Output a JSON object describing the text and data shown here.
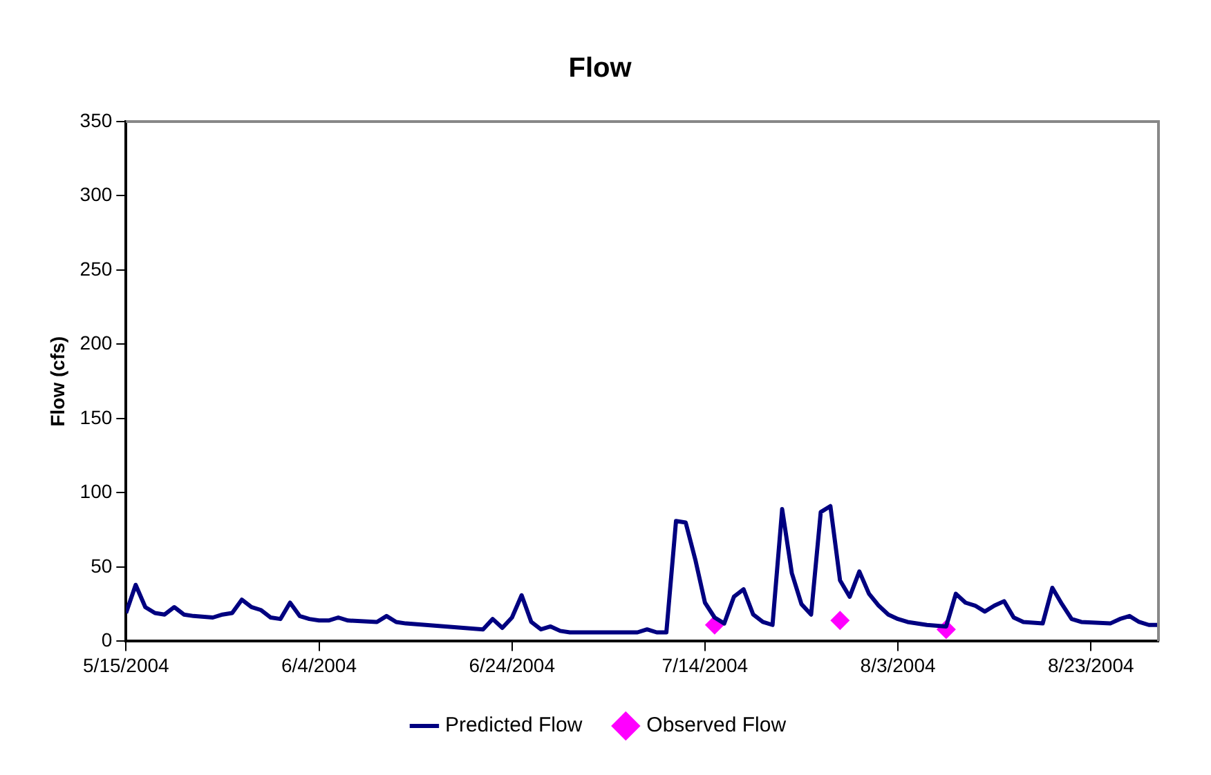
{
  "chart_data": {
    "type": "line",
    "title": "Flow",
    "ylabel": "Flow (cfs)",
    "xlim": [
      "2004-05-15",
      "2004-08-30"
    ],
    "xticks": [
      {
        "value": "2004-05-15",
        "label": "5/15/2004"
      },
      {
        "value": "2004-06-04",
        "label": "6/4/2004"
      },
      {
        "value": "2004-06-24",
        "label": "6/24/2004"
      },
      {
        "value": "2004-07-14",
        "label": "7/14/2004"
      },
      {
        "value": "2004-08-03",
        "label": "8/3/2004"
      },
      {
        "value": "2004-08-23",
        "label": "8/23/2004"
      }
    ],
    "ylim": [
      0,
      350
    ],
    "yticks": [
      0,
      50,
      100,
      150,
      200,
      250,
      300,
      350
    ],
    "grid": false,
    "legend": "bottom",
    "series": [
      {
        "name": "Predicted Flow",
        "color": "#000080",
        "marker": "none",
        "x": [
          "2004-05-15",
          "2004-05-16",
          "2004-05-17",
          "2004-05-18",
          "2004-05-19",
          "2004-05-20",
          "2004-05-21",
          "2004-05-22",
          "2004-05-24",
          "2004-05-25",
          "2004-05-26",
          "2004-05-27",
          "2004-05-28",
          "2004-05-29",
          "2004-05-30",
          "2004-05-31",
          "2004-06-01",
          "2004-06-02",
          "2004-06-03",
          "2004-06-04",
          "2004-06-05",
          "2004-06-06",
          "2004-06-07",
          "2004-06-10",
          "2004-06-11",
          "2004-06-12",
          "2004-06-13",
          "2004-06-21",
          "2004-06-22",
          "2004-06-23",
          "2004-06-24",
          "2004-06-25",
          "2004-06-26",
          "2004-06-27",
          "2004-06-28",
          "2004-06-29",
          "2004-06-30",
          "2004-07-03",
          "2004-07-07",
          "2004-07-08",
          "2004-07-09",
          "2004-07-10",
          "2004-07-11",
          "2004-07-12",
          "2004-07-13",
          "2004-07-14",
          "2004-07-15",
          "2004-07-16",
          "2004-07-17",
          "2004-07-18",
          "2004-07-19",
          "2004-07-20",
          "2004-07-21",
          "2004-07-22",
          "2004-07-23",
          "2004-07-24",
          "2004-07-25",
          "2004-07-26",
          "2004-07-27",
          "2004-07-28",
          "2004-07-29",
          "2004-07-30",
          "2004-07-31",
          "2004-08-01",
          "2004-08-02",
          "2004-08-03",
          "2004-08-04",
          "2004-08-06",
          "2004-08-08",
          "2004-08-09",
          "2004-08-10",
          "2004-08-11",
          "2004-08-12",
          "2004-08-13",
          "2004-08-14",
          "2004-08-15",
          "2004-08-16",
          "2004-08-18",
          "2004-08-19",
          "2004-08-20",
          "2004-08-21",
          "2004-08-22",
          "2004-08-25",
          "2004-08-26",
          "2004-08-27",
          "2004-08-28",
          "2004-08-29",
          "2004-08-30"
        ],
        "values": [
          19,
          38,
          23,
          19,
          18,
          23,
          18,
          17,
          16,
          18,
          19,
          28,
          23,
          21,
          16,
          15,
          26,
          17,
          15,
          14,
          14,
          16,
          14,
          13,
          17,
          13,
          12,
          8,
          15,
          9,
          16,
          31,
          13,
          8,
          10,
          7,
          6,
          6,
          6,
          8,
          6,
          6,
          81,
          80,
          55,
          26,
          16,
          12,
          30,
          35,
          18,
          13,
          11,
          89,
          46,
          25,
          18,
          87,
          91,
          41,
          30,
          47,
          32,
          24,
          18,
          15,
          13,
          11,
          10,
          32,
          26,
          24,
          20,
          24,
          27,
          16,
          13,
          12,
          36,
          25,
          15,
          13,
          12,
          15,
          17,
          13,
          11,
          11
        ]
      },
      {
        "name": "Observed Flow",
        "type": "scatter",
        "color": "#ff00ff",
        "marker": "diamond",
        "x": [
          "2004-07-15",
          "2004-07-28",
          "2004-08-08"
        ],
        "values": [
          11,
          14,
          8
        ]
      }
    ]
  }
}
